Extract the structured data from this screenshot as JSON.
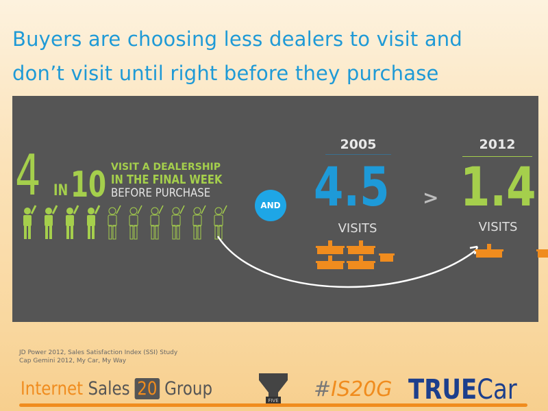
{
  "title": {
    "line1": "Buyers are choosing less dealers to visit and",
    "line2": "don’t visit until right before they purchase"
  },
  "infographic": {
    "stat_big": "4",
    "stat_in": "IN",
    "stat_of": "10",
    "caption_line1": "VISIT A DEALERSHIP",
    "caption_line2": "IN THE FINAL WEEK",
    "caption_line3": "BEFORE PURCHASE",
    "people_total": 10,
    "people_highlighted": 4,
    "and_label": "AND",
    "comparison": [
      {
        "year": "2005",
        "value": "4.5",
        "unit": "VISITS",
        "dealership_icons": 4.5,
        "color": "#1e9ad8"
      },
      {
        "year": "2012",
        "value": "1.4",
        "unit": "VISITS",
        "dealership_icons": 1.4,
        "color": "#a5cf4c"
      }
    ],
    "comparator": ">"
  },
  "sources": [
    "JD Power 2012, Sales Satisfaction Index (SSI) Study",
    "Cap Gemini 2012, My Car, My Way"
  ],
  "footer": {
    "logo_isg": {
      "part1": "Internet",
      "part2": "Sales",
      "part3": "20",
      "part4": "Group"
    },
    "logo_five": "FIVE",
    "hashtag": {
      "hash": "#",
      "part1": "IS",
      "part2": "20G"
    },
    "logo_truecar": {
      "bold": "TRUE",
      "light": "Car"
    }
  },
  "colors": {
    "title": "#1f9ad6",
    "panel": "#555555",
    "green": "#a5cf4c",
    "blue": "#1e9ad8",
    "orange": "#f08c1e"
  }
}
